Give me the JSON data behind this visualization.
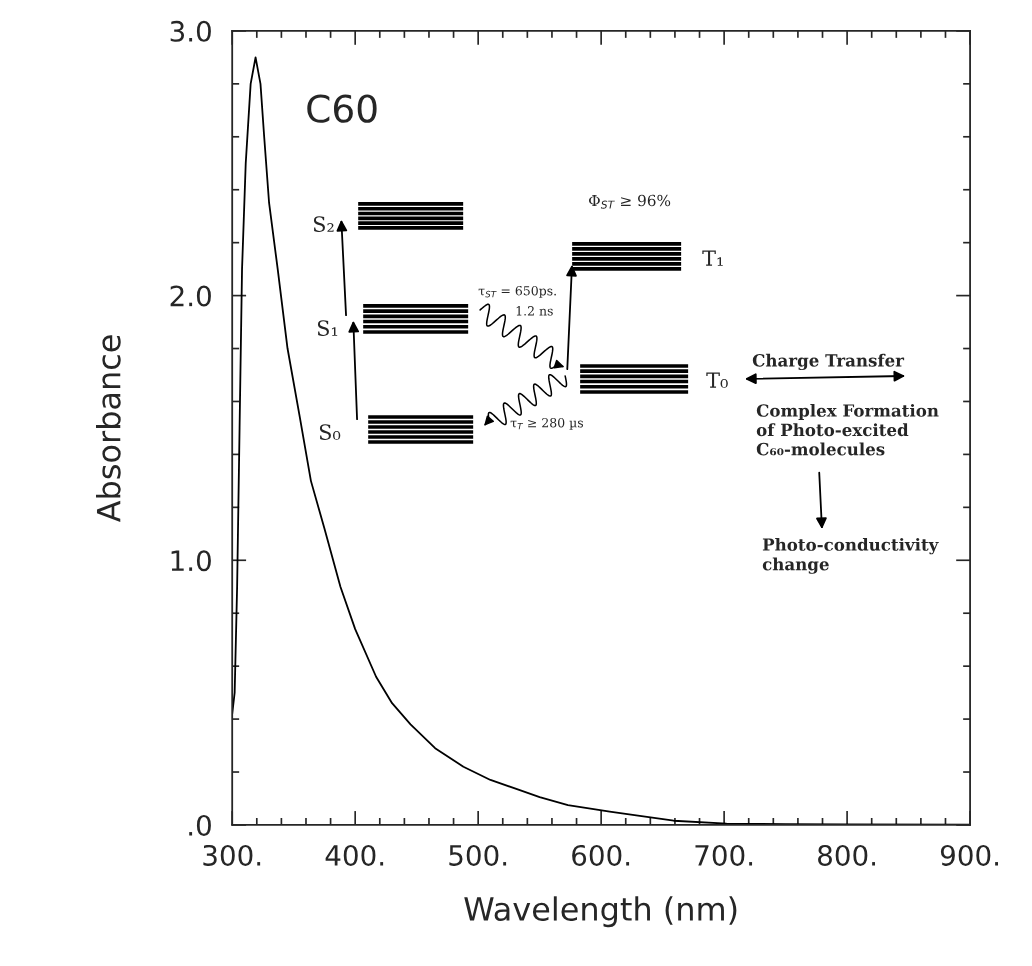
{
  "chart_data": {
    "type": "line",
    "xlabel": "Wavelength (nm)",
    "ylabel": "Absorbance",
    "x": [
      300,
      302,
      304,
      306,
      308,
      311,
      315,
      319,
      323,
      326,
      330,
      337,
      345,
      355,
      364,
      375,
      388,
      400,
      417,
      430,
      445,
      465,
      488,
      510,
      531,
      550,
      573,
      607,
      630,
      659,
      702,
      750,
      800,
      900
    ],
    "series": [
      {
        "color": "#000000",
        "values": [
          0.42,
          0.5,
          0.9,
          1.5,
          2.1,
          2.5,
          2.8,
          2.9,
          2.8,
          2.6,
          2.35,
          2.1,
          1.8,
          1.54,
          1.3,
          1.12,
          0.9,
          0.74,
          0.56,
          0.46,
          0.38,
          0.29,
          0.22,
          0.17,
          0.136,
          0.105,
          0.075,
          0.05,
          0.035,
          0.016,
          0.005,
          0.003,
          0.002,
          0.001
        ]
      }
    ],
    "xlim": [
      300,
      900
    ],
    "ylim": [
      0,
      3
    ],
    "xticks": [
      {
        "value": 300,
        "label": "300."
      },
      {
        "value": 320,
        "label": null
      },
      {
        "value": 340,
        "label": null
      },
      {
        "value": 360,
        "label": null
      },
      {
        "value": 380,
        "label": null
      },
      {
        "value": 400,
        "label": "400."
      },
      {
        "value": 420,
        "label": null
      },
      {
        "value": 440,
        "label": null
      },
      {
        "value": 460,
        "label": null
      },
      {
        "value": 480,
        "label": null
      },
      {
        "value": 500,
        "label": "500."
      },
      {
        "value": 520,
        "label": null
      },
      {
        "value": 540,
        "label": null
      },
      {
        "value": 560,
        "label": null
      },
      {
        "value": 580,
        "label": null
      },
      {
        "value": 600,
        "label": "600."
      },
      {
        "value": 620,
        "label": null
      },
      {
        "value": 640,
        "label": null
      },
      {
        "value": 660,
        "label": null
      },
      {
        "value": 680,
        "label": null
      },
      {
        "value": 700,
        "label": "700."
      },
      {
        "value": 720,
        "label": null
      },
      {
        "value": 740,
        "label": null
      },
      {
        "value": 760,
        "label": null
      },
      {
        "value": 780,
        "label": null
      },
      {
        "value": 800,
        "label": "800."
      },
      {
        "value": 820,
        "label": null
      },
      {
        "value": 840,
        "label": null
      },
      {
        "value": 860,
        "label": null
      },
      {
        "value": 880,
        "label": null
      },
      {
        "value": 900,
        "label": "900."
      }
    ],
    "yticks": [
      {
        "value": 0,
        "label": ".0"
      },
      {
        "value": 0.2,
        "label": null
      },
      {
        "value": 0.4,
        "label": null
      },
      {
        "value": 0.6,
        "label": null
      },
      {
        "value": 0.8,
        "label": null
      },
      {
        "value": 1,
        "label": "1.0"
      },
      {
        "value": 1.2,
        "label": null
      },
      {
        "value": 1.4,
        "label": null
      },
      {
        "value": 1.6,
        "label": null
      },
      {
        "value": 1.8,
        "label": null
      },
      {
        "value": 2,
        "label": "2.0"
      },
      {
        "value": 2.2,
        "label": null
      },
      {
        "value": 2.4,
        "label": null
      },
      {
        "value": 2.6,
        "label": null
      },
      {
        "value": 2.8,
        "label": null
      },
      {
        "value": 3,
        "label": "3.0"
      }
    ],
    "marker": "none",
    "line_style": "solid",
    "annotations": [
      "C60",
      "S₂",
      "S₁",
      "S₀",
      "T₁",
      "T₀",
      "Φ$_{ST}$ ≥ 96%",
      "τ$_{ST}$ = 650ps.",
      "1.2 ns",
      "τ$_{T}$ ≥ 280 µs",
      "Charge Transfer",
      "Complex Formation\nof Photo-excited\nC₆₀-molecules",
      "Photo-conductivity\nchange"
    ]
  }
}
